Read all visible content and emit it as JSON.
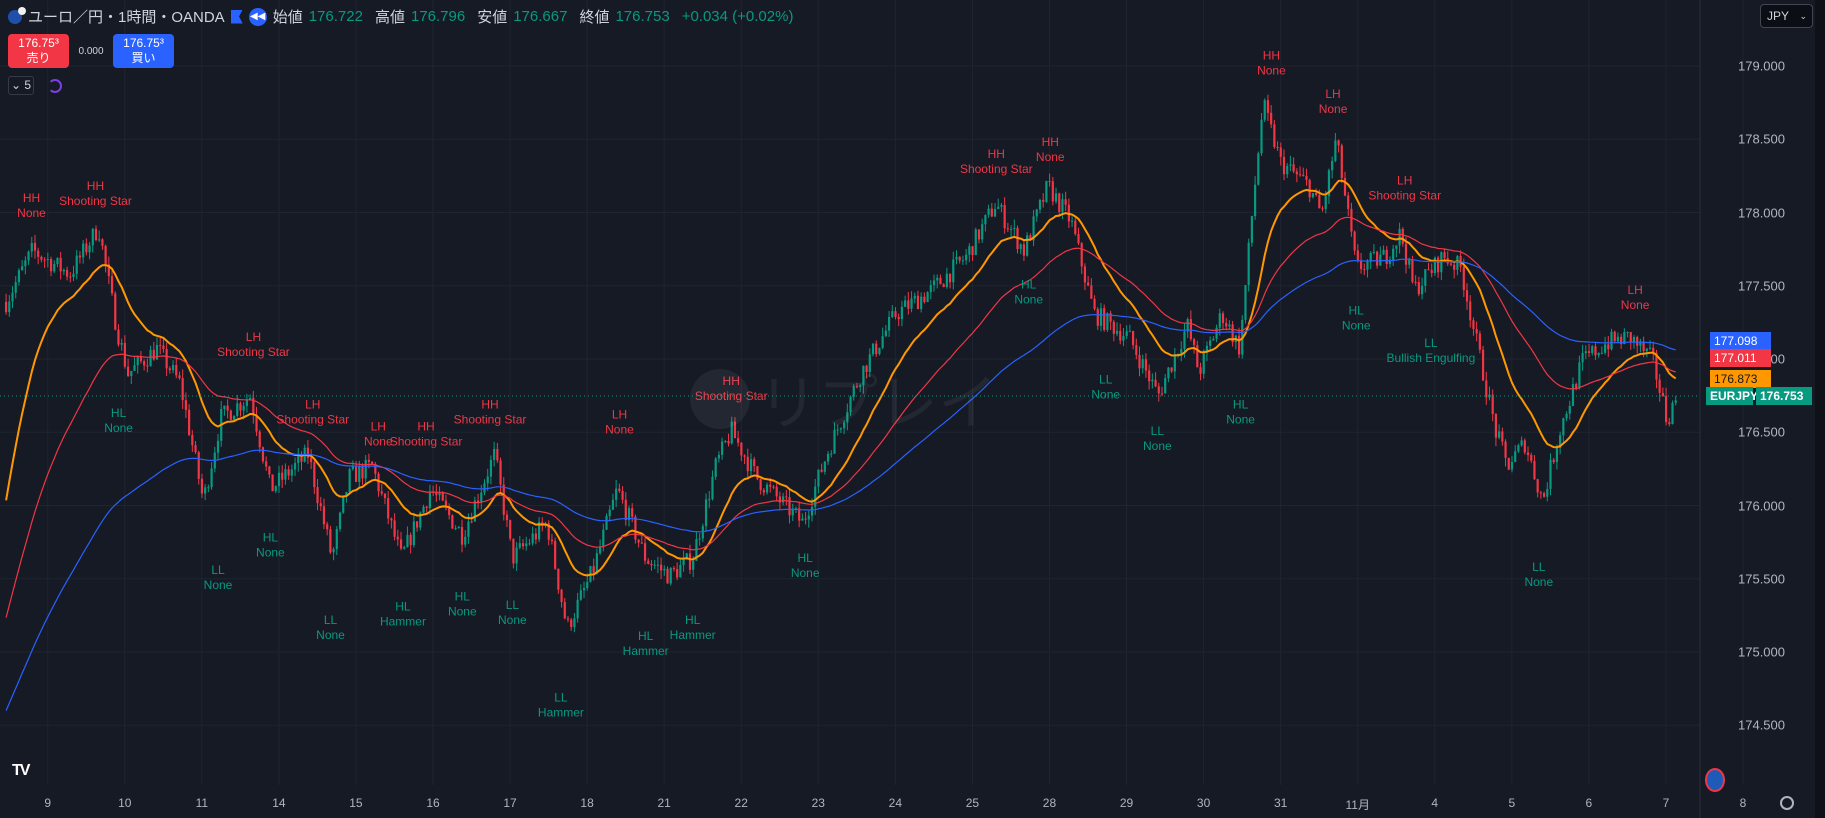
{
  "header": {
    "symbol_title": "ユーロ／円・1時間・OANDA",
    "open_label": "始値",
    "open": "176.722",
    "high_label": "高値",
    "high": "176.796",
    "low_label": "安値",
    "low": "176.667",
    "close_label": "終値",
    "close": "176.753",
    "change": "+0.034 (+0.02%)"
  },
  "trade": {
    "sell_price": "176.75³",
    "sell_label": "売り",
    "spread": "0.000",
    "buy_price": "176.75³",
    "buy_label": "買い"
  },
  "indicators": {
    "count": "5"
  },
  "currency": "JPY",
  "watermark": "リプレイ",
  "price_labels": [
    "179.000",
    "178.500",
    "178.000",
    "177.500",
    "177.000",
    "176.500",
    "176.000",
    "175.500",
    "175.000",
    "174.500"
  ],
  "tags": {
    "ma_blue": "177.098",
    "ma_red": "177.011",
    "ma_orange": "176.873",
    "symbol": "EURJPY",
    "last": "176.753"
  },
  "date_labels": [
    "9",
    "10",
    "11",
    "14",
    "15",
    "16",
    "17",
    "18",
    "21",
    "22",
    "23",
    "24",
    "25",
    "28",
    "29",
    "30",
    "31",
    "11月",
    "4",
    "5",
    "6",
    "7",
    "8"
  ],
  "colors": {
    "up": "#089981",
    "down": "#f23645",
    "ma_fast": "#ff9800",
    "ma_mid": "#f23645",
    "ma_slow": "#2962ff",
    "bg": "#161a25"
  },
  "chart_data": {
    "type": "candlestick",
    "symbol": "EURJPY",
    "interval": "1h",
    "ylim": [
      174.3,
      179.3
    ],
    "x_unit": "trading day index (0 = '9')",
    "path": [
      [
        -0.54,
        177.39
      ],
      [
        -0.2,
        177.74
      ],
      [
        0.29,
        177.58
      ],
      [
        0.66,
        177.9
      ],
      [
        0.89,
        177.23
      ],
      [
        1.04,
        176.9
      ],
      [
        1.42,
        177.07
      ],
      [
        1.72,
        176.83
      ],
      [
        2.02,
        176.03
      ],
      [
        2.25,
        176.6
      ],
      [
        2.63,
        176.75
      ],
      [
        2.89,
        176.11
      ],
      [
        3.38,
        176.35
      ],
      [
        3.69,
        175.64
      ],
      [
        3.91,
        176.19
      ],
      [
        4.21,
        176.27
      ],
      [
        4.59,
        175.64
      ],
      [
        4.97,
        176.11
      ],
      [
        5.38,
        175.8
      ],
      [
        5.8,
        176.35
      ],
      [
        6.03,
        175.64
      ],
      [
        6.48,
        175.88
      ],
      [
        6.74,
        175.16
      ],
      [
        7.08,
        175.56
      ],
      [
        7.39,
        176.11
      ],
      [
        7.76,
        175.64
      ],
      [
        8.07,
        175.52
      ],
      [
        8.37,
        175.64
      ],
      [
        8.67,
        176.27
      ],
      [
        8.87,
        176.51
      ],
      [
        9.2,
        176.19
      ],
      [
        9.8,
        175.88
      ],
      [
        10.11,
        176.35
      ],
      [
        10.56,
        176.91
      ],
      [
        11.01,
        177.31
      ],
      [
        11.47,
        177.47
      ],
      [
        11.92,
        177.7
      ],
      [
        12.3,
        178.06
      ],
      [
        12.67,
        177.74
      ],
      [
        12.98,
        178.18
      ],
      [
        13.28,
        177.94
      ],
      [
        13.58,
        177.31
      ],
      [
        14.03,
        177.15
      ],
      [
        14.41,
        176.75
      ],
      [
        14.79,
        177.23
      ],
      [
        14.94,
        176.91
      ],
      [
        15.24,
        177.31
      ],
      [
        15.47,
        177.07
      ],
      [
        15.62,
        177.94
      ],
      [
        15.77,
        178.74
      ],
      [
        16.0,
        178.34
      ],
      [
        16.37,
        178.18
      ],
      [
        16.53,
        177.98
      ],
      [
        16.72,
        178.5
      ],
      [
        16.98,
        177.62
      ],
      [
        17.36,
        177.7
      ],
      [
        17.56,
        177.86
      ],
      [
        17.73,
        177.47
      ],
      [
        18.11,
        177.7
      ],
      [
        18.34,
        177.62
      ],
      [
        18.56,
        177.07
      ],
      [
        18.79,
        176.51
      ],
      [
        18.94,
        176.27
      ],
      [
        19.17,
        176.43
      ],
      [
        19.4,
        176.03
      ],
      [
        19.62,
        176.51
      ],
      [
        19.92,
        176.99
      ],
      [
        20.23,
        177.11
      ],
      [
        20.53,
        177.15
      ],
      [
        20.83,
        176.99
      ],
      [
        21.01,
        176.59
      ],
      [
        21.16,
        176.75
      ]
    ],
    "moving_averages": [
      {
        "name": "fast",
        "color": "#ff9800",
        "period": 20,
        "seed": 175.9
      },
      {
        "name": "mid",
        "color": "#f23645",
        "period": 50,
        "seed": 175.15
      },
      {
        "name": "slow",
        "color": "#2962ff",
        "period": 110,
        "seed": 174.55
      }
    ],
    "annotations": [
      {
        "d": -0.21,
        "p": 178.1,
        "kind": "top",
        "l1": "HH",
        "l2": "None"
      },
      {
        "d": 0.62,
        "p": 178.18,
        "kind": "top",
        "l1": "HH",
        "l2": "Shooting Star"
      },
      {
        "d": 2.67,
        "p": 177.15,
        "kind": "top",
        "l1": "LH",
        "l2": "Shooting Star"
      },
      {
        "d": 0.92,
        "p": 176.63,
        "kind": "bottom",
        "l1": "HL",
        "l2": "None"
      },
      {
        "d": 3.44,
        "p": 176.69,
        "kind": "top",
        "l1": "LH",
        "l2": "Shooting Star"
      },
      {
        "d": 4.29,
        "p": 176.54,
        "kind": "top",
        "l1": "LH",
        "l2": "None"
      },
      {
        "d": 4.91,
        "p": 176.54,
        "kind": "top",
        "l1": "HH",
        "l2": "Shooting Star"
      },
      {
        "d": 5.74,
        "p": 176.69,
        "kind": "top",
        "l1": "HH",
        "l2": "Shooting Star"
      },
      {
        "d": 2.21,
        "p": 175.56,
        "kind": "bottom",
        "l1": "LL",
        "l2": "None"
      },
      {
        "d": 2.89,
        "p": 175.78,
        "kind": "bottom",
        "l1": "HL",
        "l2": "None"
      },
      {
        "d": 3.67,
        "p": 175.22,
        "kind": "bottom",
        "l1": "LL",
        "l2": "None"
      },
      {
        "d": 4.61,
        "p": 175.31,
        "kind": "bottom",
        "l1": "HL",
        "l2": "Hammer"
      },
      {
        "d": 5.38,
        "p": 175.38,
        "kind": "bottom",
        "l1": "HL",
        "l2": "None"
      },
      {
        "d": 6.03,
        "p": 175.32,
        "kind": "bottom",
        "l1": "LL",
        "l2": "None"
      },
      {
        "d": 6.66,
        "p": 174.69,
        "kind": "bottom",
        "l1": "LL",
        "l2": "Hammer"
      },
      {
        "d": 7.42,
        "p": 176.62,
        "kind": "top",
        "l1": "LH",
        "l2": "None"
      },
      {
        "d": 7.76,
        "p": 175.11,
        "kind": "bottom",
        "l1": "HL",
        "l2": "Hammer"
      },
      {
        "d": 8.37,
        "p": 175.22,
        "kind": "bottom",
        "l1": "HL",
        "l2": "Hammer"
      },
      {
        "d": 8.87,
        "p": 176.85,
        "kind": "top",
        "l1": "HH",
        "l2": "Shooting Star"
      },
      {
        "d": 9.83,
        "p": 175.64,
        "kind": "bottom",
        "l1": "HL",
        "l2": "None"
      },
      {
        "d": 12.31,
        "p": 178.4,
        "kind": "top",
        "l1": "HH",
        "l2": "Shooting Star"
      },
      {
        "d": 13.01,
        "p": 178.48,
        "kind": "top",
        "l1": "HH",
        "l2": "None"
      },
      {
        "d": 12.73,
        "p": 177.51,
        "kind": "bottom",
        "l1": "HL",
        "l2": "None"
      },
      {
        "d": 13.73,
        "p": 176.86,
        "kind": "bottom",
        "l1": "LL",
        "l2": "None"
      },
      {
        "d": 14.4,
        "p": 176.51,
        "kind": "bottom",
        "l1": "LL",
        "l2": "None"
      },
      {
        "d": 15.48,
        "p": 176.69,
        "kind": "bottom",
        "l1": "HL",
        "l2": "None"
      },
      {
        "d": 15.88,
        "p": 179.07,
        "kind": "top",
        "l1": "HH",
        "l2": "None"
      },
      {
        "d": 16.68,
        "p": 178.81,
        "kind": "top",
        "l1": "LH",
        "l2": "None"
      },
      {
        "d": 17.61,
        "p": 178.22,
        "kind": "top",
        "l1": "LH",
        "l2": "Shooting Star"
      },
      {
        "d": 16.98,
        "p": 177.33,
        "kind": "bottom",
        "l1": "HL",
        "l2": "None"
      },
      {
        "d": 17.95,
        "p": 177.11,
        "kind": "bottom",
        "l1": "LL",
        "l2": "Bullish Engulfing"
      },
      {
        "d": 19.35,
        "p": 175.58,
        "kind": "bottom",
        "l1": "LL",
        "l2": "None"
      },
      {
        "d": 20.6,
        "p": 177.47,
        "kind": "top",
        "l1": "LH",
        "l2": "None"
      }
    ]
  }
}
